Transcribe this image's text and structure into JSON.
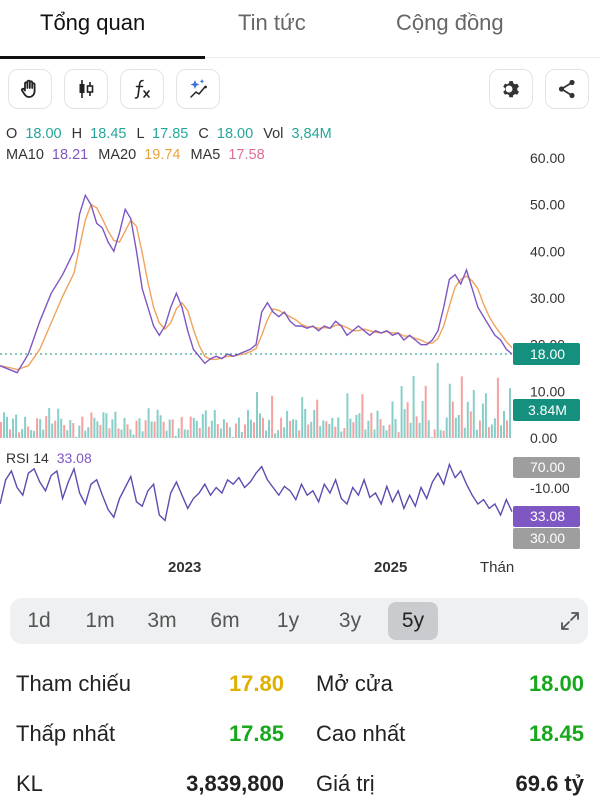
{
  "tabs": [
    {
      "label": "Tổng quan",
      "active": true
    },
    {
      "label": "Tin tức",
      "active": false
    },
    {
      "label": "Cộng đồng",
      "active": false
    }
  ],
  "toolbar": {
    "left_icons": [
      "hand-icon",
      "candlestick-icon",
      "function-icon",
      "sparkle-draw-icon"
    ],
    "right_icons": [
      "gear-icon",
      "share-icon"
    ]
  },
  "chart_data": {
    "type": "line",
    "ohlc": {
      "o_label": "O",
      "o": "18.00",
      "h_label": "H",
      "h": "18.45",
      "l_label": "L",
      "l": "17.85",
      "c_label": "C",
      "c": "18.00",
      "vol_label": "Vol",
      "vol": "3,84M"
    },
    "ma": {
      "ma10_label": "MA10",
      "ma10": "18.21",
      "ma20_label": "MA20",
      "ma20": "19.74",
      "ma5_label": "MA5",
      "ma5": "17.58"
    },
    "price_axis": {
      "ticks": [
        "60.00",
        "50.00",
        "40.00",
        "30.00",
        "20.00",
        "10.00",
        "0.00"
      ],
      "min": 0,
      "max": 60
    },
    "last_price_label": "18.00",
    "last_volume_label": "3.84M",
    "x_ticks": [
      "2023",
      "2025",
      "Thán"
    ],
    "price_series": [
      [
        0,
        15.5
      ],
      [
        2,
        14.5
      ],
      [
        3,
        14.0
      ],
      [
        5,
        18
      ],
      [
        7,
        25
      ],
      [
        9,
        31
      ],
      [
        11,
        35
      ],
      [
        13,
        40
      ],
      [
        14,
        48
      ],
      [
        15,
        52
      ],
      [
        16,
        50
      ],
      [
        17,
        46
      ],
      [
        18,
        45
      ],
      [
        19,
        42
      ],
      [
        20,
        40
      ],
      [
        21,
        44
      ],
      [
        22,
        49
      ],
      [
        23,
        47
      ],
      [
        24,
        40
      ],
      [
        25,
        32
      ],
      [
        26,
        28
      ],
      [
        27,
        24
      ],
      [
        28,
        22
      ],
      [
        29,
        24
      ],
      [
        30,
        28
      ],
      [
        31,
        31
      ],
      [
        32,
        28
      ],
      [
        33,
        23
      ],
      [
        34,
        19
      ],
      [
        35,
        17.5
      ],
      [
        36,
        16
      ],
      [
        37,
        17
      ],
      [
        38,
        17.5
      ],
      [
        39,
        17
      ],
      [
        40,
        18
      ],
      [
        41,
        17.5
      ],
      [
        42,
        18
      ],
      [
        43,
        18.5
      ],
      [
        44,
        19
      ],
      [
        45,
        20
      ],
      [
        46,
        27
      ],
      [
        47,
        29
      ],
      [
        48,
        27
      ],
      [
        49,
        26
      ],
      [
        50,
        27
      ],
      [
        51,
        25
      ],
      [
        52,
        24
      ],
      [
        53,
        24
      ],
      [
        54,
        23.5
      ],
      [
        55,
        24
      ],
      [
        56,
        23
      ],
      [
        57,
        24
      ],
      [
        58,
        23.5
      ],
      [
        59,
        25
      ],
      [
        60,
        24
      ],
      [
        61,
        22
      ],
      [
        62,
        23
      ],
      [
        63,
        24
      ],
      [
        64,
        23
      ],
      [
        65,
        22
      ],
      [
        66,
        23
      ],
      [
        67,
        22.5
      ],
      [
        68,
        23
      ],
      [
        69,
        22
      ],
      [
        70,
        22.5
      ],
      [
        71,
        21
      ],
      [
        72,
        22
      ],
      [
        73,
        21
      ],
      [
        74,
        20
      ],
      [
        75,
        20
      ],
      [
        76,
        21
      ],
      [
        77,
        23
      ],
      [
        78,
        28
      ],
      [
        79,
        34
      ],
      [
        80,
        35
      ],
      [
        81,
        33
      ],
      [
        82,
        36
      ],
      [
        83,
        32
      ],
      [
        84,
        28
      ],
      [
        85,
        26
      ],
      [
        86,
        24
      ],
      [
        87,
        22
      ],
      [
        88,
        21
      ],
      [
        89,
        19
      ],
      [
        90,
        18
      ]
    ],
    "rsi": {
      "label": "RSI 14",
      "value": "33.08",
      "ticks": [
        "70.00",
        "-10.00",
        "33.08",
        "30.00"
      ],
      "series": [
        [
          0,
          40
        ],
        [
          1,
          62
        ],
        [
          2,
          70
        ],
        [
          3,
          55
        ],
        [
          4,
          48
        ],
        [
          5,
          68
        ],
        [
          6,
          72
        ],
        [
          7,
          60
        ],
        [
          8,
          52
        ],
        [
          9,
          66
        ],
        [
          10,
          70
        ],
        [
          11,
          45
        ],
        [
          12,
          60
        ],
        [
          13,
          72
        ],
        [
          14,
          50
        ],
        [
          15,
          40
        ],
        [
          16,
          58
        ],
        [
          17,
          62
        ],
        [
          18,
          48
        ],
        [
          19,
          35
        ],
        [
          20,
          28
        ],
        [
          21,
          45
        ],
        [
          22,
          55
        ],
        [
          23,
          65
        ],
        [
          24,
          42
        ],
        [
          25,
          38
        ],
        [
          26,
          52
        ],
        [
          27,
          58
        ],
        [
          28,
          30
        ],
        [
          29,
          25
        ],
        [
          30,
          50
        ],
        [
          31,
          60
        ],
        [
          32,
          48
        ],
        [
          33,
          36
        ],
        [
          34,
          45
        ],
        [
          35,
          50
        ],
        [
          36,
          58
        ],
        [
          37,
          48
        ],
        [
          38,
          55
        ],
        [
          39,
          50
        ],
        [
          40,
          62
        ],
        [
          41,
          58
        ],
        [
          42,
          64
        ],
        [
          43,
          55
        ],
        [
          44,
          60
        ],
        [
          45,
          68
        ],
        [
          46,
          74
        ],
        [
          47,
          62
        ],
        [
          48,
          55
        ],
        [
          49,
          48
        ],
        [
          50,
          56
        ],
        [
          51,
          52
        ],
        [
          52,
          44
        ],
        [
          53,
          58
        ],
        [
          54,
          48
        ],
        [
          55,
          52
        ],
        [
          56,
          42
        ],
        [
          57,
          58
        ],
        [
          58,
          50
        ],
        [
          59,
          62
        ],
        [
          60,
          45
        ],
        [
          61,
          40
        ],
        [
          62,
          55
        ],
        [
          63,
          48
        ],
        [
          64,
          62
        ],
        [
          65,
          46
        ],
        [
          66,
          50
        ],
        [
          67,
          40
        ],
        [
          68,
          56
        ],
        [
          69,
          42
        ],
        [
          70,
          52
        ],
        [
          71,
          36
        ],
        [
          72,
          48
        ],
        [
          73,
          38
        ],
        [
          74,
          55
        ],
        [
          75,
          45
        ],
        [
          76,
          60
        ],
        [
          77,
          68
        ],
        [
          78,
          58
        ],
        [
          79,
          76
        ],
        [
          80,
          64
        ],
        [
          81,
          70
        ],
        [
          82,
          58
        ],
        [
          83,
          48
        ],
        [
          84,
          40
        ],
        [
          85,
          44
        ],
        [
          86,
          36
        ],
        [
          87,
          40
        ],
        [
          88,
          30
        ],
        [
          89,
          44
        ],
        [
          90,
          33
        ]
      ]
    },
    "colors": {
      "price": "#7e57c2",
      "ma": "#f0a35c",
      "up": "#26a69a",
      "down": "#ef5350",
      "last": "#15907f",
      "rsi": "#5e4cb0"
    }
  },
  "periods": [
    {
      "label": "1d",
      "active": false
    },
    {
      "label": "1m",
      "active": false
    },
    {
      "label": "3m",
      "active": false
    },
    {
      "label": "6m",
      "active": false
    },
    {
      "label": "1y",
      "active": false
    },
    {
      "label": "3y",
      "active": false
    },
    {
      "label": "5y",
      "active": true
    }
  ],
  "stats": {
    "ref_label": "Tham chiếu",
    "ref_value": "17.80",
    "open_label": "Mở cửa",
    "open_value": "18.00",
    "low_label": "Thấp nhất",
    "low_value": "17.85",
    "high_label": "Cao nhất",
    "high_value": "18.45",
    "vol_label": "KL",
    "vol_value": "3,839,800",
    "value_label": "Giá trị",
    "value_value": "69.6 tỷ"
  }
}
